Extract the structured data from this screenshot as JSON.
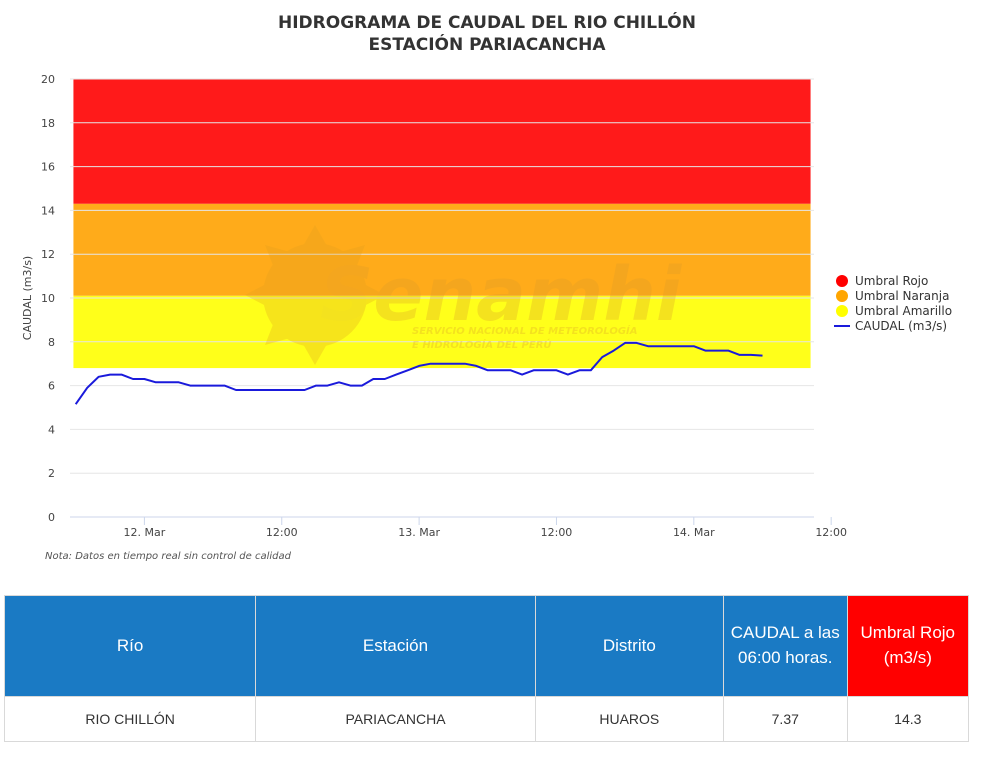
{
  "chart_data": {
    "type": "line",
    "title": "HIDROGRAMA DE CAUDAL DEL RIO CHILLÓN",
    "subtitle": "ESTACIÓN PARIACANCHA",
    "ylabel": "CAUDAL (m3/s)",
    "xlabel": "",
    "ylim": [
      0,
      20
    ],
    "yticks": [
      0,
      2,
      4,
      6,
      8,
      10,
      12,
      14,
      16,
      18,
      20
    ],
    "x_range_hours": [
      -6.5,
      58.5
    ],
    "xticks": [
      {
        "hour": 0,
        "label": "12. Mar"
      },
      {
        "hour": 12,
        "label": "12:00"
      },
      {
        "hour": 24,
        "label": "13. Mar"
      },
      {
        "hour": 36,
        "label": "12:00"
      },
      {
        "hour": 48,
        "label": "14. Mar"
      },
      {
        "hour": 60,
        "label": "12:00"
      }
    ],
    "bands": [
      {
        "name": "Umbral Rojo",
        "from": 14.3,
        "to": 20,
        "color": "#ff1a1a"
      },
      {
        "name": "Umbral Naranja",
        "from": 10.1,
        "to": 14.3,
        "color": "#ffab1a"
      },
      {
        "name": "Umbral Amarillo",
        "from": 6.8,
        "to": 10.1,
        "color": "#ffff1a"
      }
    ],
    "series": [
      {
        "name": "CAUDAL (m3/s)",
        "color": "#1a1adb",
        "x_hours": [
          -6,
          -5,
          -4,
          -3,
          -2,
          -1,
          0,
          1,
          2,
          3,
          4,
          5,
          6,
          7,
          8,
          9,
          10,
          11,
          12,
          13,
          14,
          15,
          16,
          17,
          18,
          19,
          20,
          21,
          22,
          23,
          24,
          25,
          26,
          27,
          28,
          29,
          30,
          31,
          32,
          33,
          34,
          35,
          36,
          37,
          38,
          39,
          40,
          41,
          42,
          43,
          44,
          45,
          46,
          47,
          48,
          49,
          50,
          51,
          52,
          53,
          54
        ],
        "values": [
          5.15,
          5.9,
          6.4,
          6.5,
          6.5,
          6.3,
          6.3,
          6.15,
          6.15,
          6.15,
          6.0,
          6.0,
          6.0,
          6.0,
          5.8,
          5.8,
          5.8,
          5.8,
          5.8,
          5.8,
          5.8,
          6.0,
          6.0,
          6.15,
          6.0,
          6.0,
          6.3,
          6.3,
          6.5,
          6.7,
          6.9,
          7.0,
          7.0,
          7.0,
          7.0,
          6.9,
          6.7,
          6.7,
          6.7,
          6.5,
          6.7,
          6.7,
          6.7,
          6.5,
          6.7,
          6.7,
          7.3,
          7.6,
          7.95,
          7.95,
          7.8,
          7.8,
          7.8,
          7.8,
          7.8,
          7.6,
          7.6,
          7.6,
          7.4,
          7.4,
          7.37
        ]
      }
    ],
    "legend_position": "right",
    "grid": true,
    "note": "Nota: Datos en tiempo real sin control de calidad"
  },
  "watermark": {
    "brand": "Senamhi",
    "line1": "SERVICIO NACIONAL DE METEOROLOGÍA",
    "line2": "E HIDROLOGÍA DEL PERÚ"
  },
  "table": {
    "headers": [
      "Río",
      "Estación",
      "Distrito",
      "CAUDAL a las 06:00 horas.",
      "Umbral Rojo (m3/s)"
    ],
    "row": [
      "RIO CHILLÓN",
      "PARIACANCHA",
      "HUAROS",
      "7.37",
      "14.3"
    ],
    "header_colors": {
      "default": "#1a7ac4",
      "umbral": "#ff0000"
    }
  }
}
